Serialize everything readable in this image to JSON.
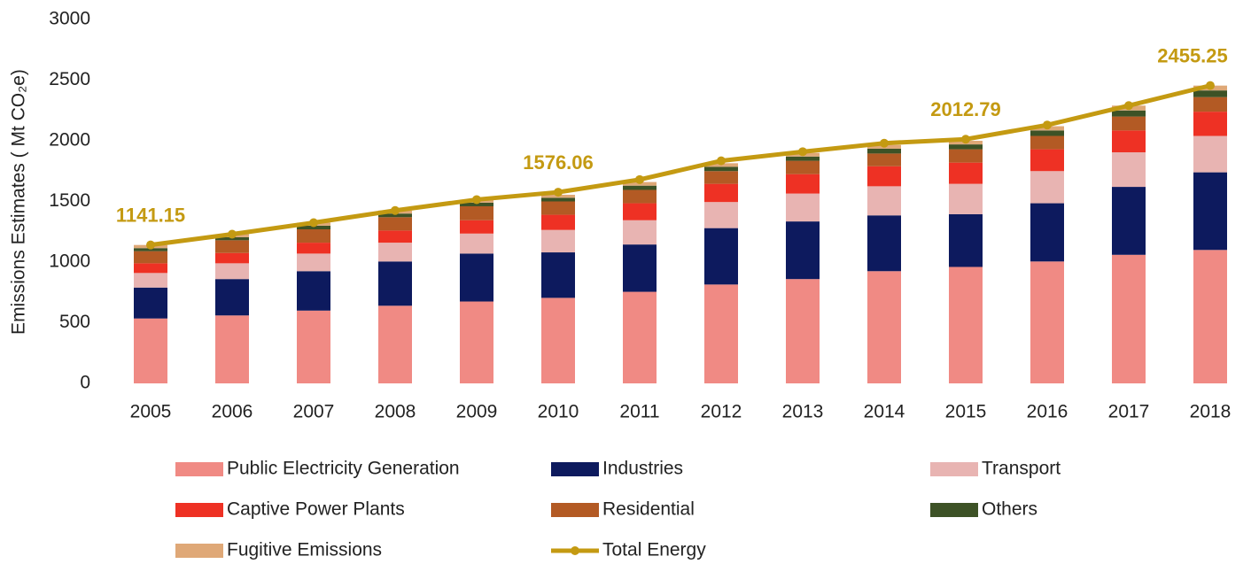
{
  "chart_data": {
    "type": "stacked-bar-line",
    "y_label": "Emissions Estimates ( Mt CO₂e)",
    "categories": [
      "2005",
      "2006",
      "2007",
      "2008",
      "2009",
      "2010",
      "2011",
      "2012",
      "2013",
      "2014",
      "2015",
      "2016",
      "2017",
      "2018"
    ],
    "ylim": [
      0,
      3000
    ],
    "yticks": [
      0,
      500,
      1000,
      1500,
      2000,
      2500,
      3000
    ],
    "series": [
      {
        "name": "Public Electricity Generation",
        "color": "#f08a84",
        "values": [
          535,
          560,
          600,
          640,
          675,
          705,
          755,
          815,
          860,
          925,
          960,
          1005,
          1060,
          1100
        ]
      },
      {
        "name": "Industries",
        "color": "#0d1a5e",
        "values": [
          255,
          300,
          325,
          365,
          395,
          375,
          390,
          465,
          475,
          460,
          435,
          480,
          560,
          640
        ]
      },
      {
        "name": "Transport",
        "color": "#e8b4b2",
        "values": [
          120,
          130,
          145,
          155,
          165,
          185,
          200,
          215,
          230,
          240,
          250,
          265,
          285,
          300
        ]
      },
      {
        "name": "Captive Power Plants",
        "color": "#ee3124",
        "values": [
          80,
          85,
          90,
          100,
          110,
          125,
          140,
          150,
          160,
          165,
          175,
          180,
          180,
          200
        ]
      },
      {
        "name": "Residential",
        "color": "#b35a24",
        "values": [
          100,
          105,
          110,
          110,
          115,
          110,
          110,
          105,
          110,
          105,
          110,
          110,
          115,
          120
        ]
      },
      {
        "name": "Others",
        "color": "#3d5226",
        "values": [
          25,
          25,
          30,
          30,
          30,
          30,
          35,
          35,
          35,
          40,
          40,
          45,
          50,
          55
        ]
      },
      {
        "name": "Fugitive Emissions",
        "color": "#dfa877",
        "values": [
          26,
          25,
          25,
          25,
          25,
          25,
          30,
          30,
          30,
          30,
          30,
          35,
          40,
          40
        ]
      }
    ],
    "line": {
      "name": "Total Energy",
      "color": "#c49a12",
      "values": [
        1141.15,
        1230,
        1325,
        1425,
        1515,
        1576.06,
        1680,
        1835,
        1910,
        1980,
        2012.79,
        2130,
        2290,
        2455.25
      ],
      "value_labels": [
        "1141.15",
        null,
        null,
        null,
        null,
        "1576.06",
        null,
        null,
        null,
        null,
        "2012.79",
        null,
        null,
        "2455.25"
      ]
    }
  }
}
